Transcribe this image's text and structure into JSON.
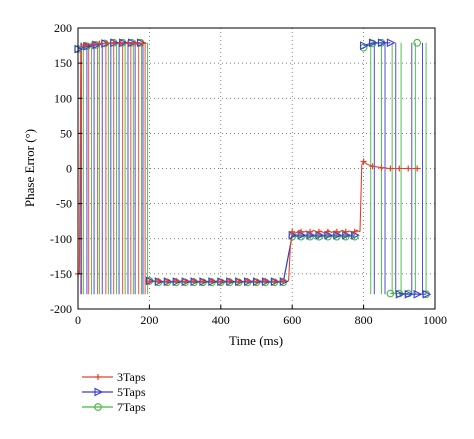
{
  "chart_data": {
    "type": "line",
    "xlabel": "Time (ms)",
    "ylabel": "Phase Error (°)",
    "xlim": [
      0,
      1000
    ],
    "ylim": [
      -200,
      200
    ],
    "xticks": [
      0,
      200,
      400,
      600,
      800,
      1000
    ],
    "yticks": [
      -200,
      -150,
      -100,
      -50,
      0,
      50,
      100,
      150,
      200
    ],
    "grid": true,
    "grid_style": "dotted",
    "legend_position": "below-left",
    "series": [
      {
        "name": "3Taps",
        "color": "#e4412c",
        "marker": "plus",
        "segments": [
          {
            "x": [
              0,
              2,
              4,
              8,
              12,
              16,
              20,
              24,
              28,
              32,
              36,
              40,
              44,
              48,
              52,
              56,
              60,
              64,
              68,
              72,
              76,
              80,
              84,
              88,
              92,
              96,
              100,
              104,
              108,
              112,
              116,
              120,
              124,
              128,
              132,
              136,
              140,
              144,
              148,
              152,
              156,
              160,
              164,
              168,
              172,
              176,
              180,
              184,
              188,
              192
            ],
            "y": [
              -150,
              -150,
              -150,
              172,
              173,
              175,
              176,
              175,
              176,
              177,
              176,
              177,
              178,
              177,
              178,
              177,
              178,
              178,
              177,
              178,
              179,
              178,
              177,
              178,
              179,
              178,
              179,
              178,
              177,
              178,
              179,
              178,
              179,
              178,
              177,
              178,
              179,
              178,
              177,
              178,
              179,
              178,
              177,
              178,
              179,
              178,
              177,
              178,
              179,
              178
            ]
          },
          {
            "x": [
              195,
              200,
              210,
              220,
              230,
              240,
              250,
              260,
              270,
              280,
              290,
              300,
              310,
              320,
              330,
              340,
              350,
              360,
              370,
              380,
              390,
              400,
              410,
              420,
              430,
              440,
              450,
              460,
              470,
              480,
              490,
              500,
              510,
              520,
              530,
              540,
              550,
              560,
              570,
              580,
              590
            ],
            "y": [
              -160,
              -161,
              -160,
              -161,
              -160,
              -161,
              -160,
              -161,
              -160,
              -161,
              -160,
              -161,
              -160,
              -161,
              -160,
              -161,
              -160,
              -161,
              -160,
              -161,
              -160,
              -161,
              -160,
              -161,
              -160,
              -161,
              -160,
              -161,
              -160,
              -161,
              -160,
              -161,
              -160,
              -161,
              -160,
              -161,
              -160,
              -161,
              -160,
              -161,
              -160
            ]
          },
          {
            "x": [
              590,
              595,
              600,
              610,
              620,
              630,
              640,
              650,
              660,
              670,
              680,
              690,
              700,
              710,
              720,
              730,
              740,
              750,
              760,
              770,
              780,
              790
            ],
            "y": [
              -160,
              -110,
              -90,
              -92,
              -88,
              -91,
              -89,
              -92,
              -88,
              -91,
              -89,
              -92,
              -88,
              -91,
              -89,
              -92,
              -88,
              -91,
              -89,
              -92,
              -88,
              -90
            ]
          },
          {
            "x": [
              790,
              795,
              800,
              810,
              820,
              830,
              840,
              850,
              860,
              870,
              880,
              890,
              900,
              910,
              920,
              930,
              940,
              950,
              960
            ],
            "y": [
              -90,
              5,
              10,
              6,
              4,
              3,
              2,
              1,
              1,
              0,
              0,
              0,
              0,
              0,
              0,
              0,
              0,
              0,
              0
            ]
          }
        ],
        "markers": {
          "x": [
            0,
            20,
            40,
            60,
            80,
            100,
            120,
            140,
            160,
            180,
            200,
            225,
            250,
            275,
            300,
            325,
            350,
            375,
            400,
            425,
            450,
            475,
            500,
            525,
            550,
            575,
            600,
            625,
            650,
            675,
            700,
            725,
            750,
            775,
            800,
            825,
            850,
            875,
            900,
            925,
            950
          ],
          "y": [
            -150,
            176,
            177,
            178,
            178,
            179,
            178,
            178,
            178,
            178,
            -161,
            -160,
            -161,
            -160,
            -161,
            -160,
            -161,
            -160,
            -161,
            -160,
            -161,
            -160,
            -161,
            -160,
            -161,
            -160,
            -90,
            -90,
            -90,
            -90,
            -90,
            -90,
            -90,
            -90,
            10,
            3,
            1,
            0,
            0,
            0,
            0
          ]
        }
      },
      {
        "name": "5Taps",
        "color": "#3e3ad6",
        "marker": "triangle-right",
        "markers": {
          "x": [
            0,
            25,
            50,
            75,
            100,
            125,
            150,
            175,
            200,
            225,
            250,
            275,
            300,
            325,
            350,
            375,
            400,
            425,
            450,
            475,
            500,
            525,
            550,
            575,
            600,
            625,
            650,
            675,
            700,
            725,
            750,
            775,
            800,
            825,
            850,
            875,
            900,
            925,
            950,
            975
          ],
          "y": [
            170,
            174,
            176,
            178,
            179,
            179,
            179,
            179,
            -160,
            -161,
            -161,
            -161,
            -161,
            -161,
            -161,
            -161,
            -161,
            -161,
            -161,
            -161,
            -161,
            -161,
            -161,
            -161,
            -95,
            -95,
            -95,
            -95,
            -95,
            -95,
            -95,
            -95,
            175,
            179,
            179,
            179,
            -179,
            -179,
            -179,
            -179
          ]
        }
      },
      {
        "name": "7Taps",
        "color": "#43b83b",
        "marker": "circle",
        "markers": {
          "x": [
            0,
            25,
            50,
            75,
            100,
            125,
            150,
            175,
            200,
            225,
            250,
            275,
            300,
            325,
            350,
            375,
            400,
            425,
            450,
            475,
            500,
            525,
            550,
            575,
            600,
            625,
            650,
            675,
            700,
            725,
            750,
            775,
            800,
            825,
            850,
            875,
            900,
            925,
            950,
            975
          ],
          "y": [
            170,
            174,
            176,
            178,
            179,
            179,
            179,
            179,
            -160,
            -162,
            -162,
            -162,
            -162,
            -162,
            -162,
            -162,
            -162,
            -162,
            -162,
            -162,
            -162,
            -162,
            -162,
            -162,
            -97,
            -97,
            -97,
            -97,
            -97,
            -97,
            -97,
            -97,
            172,
            178,
            179,
            -178,
            -178,
            -178,
            179,
            -179
          ]
        }
      }
    ],
    "wrap_jumps": {
      "3Taps": [
        10,
        30,
        55,
        78,
        100,
        125,
        148,
        170,
        188
      ],
      "5Taps": [
        8,
        25,
        45,
        68,
        92,
        115,
        140,
        160,
        182,
        830,
        860,
        890,
        935,
        965
      ],
      "7Taps": [
        15,
        38,
        60,
        85,
        108,
        132,
        155,
        178,
        195,
        820,
        850,
        880,
        905,
        945,
        975
      ]
    }
  }
}
